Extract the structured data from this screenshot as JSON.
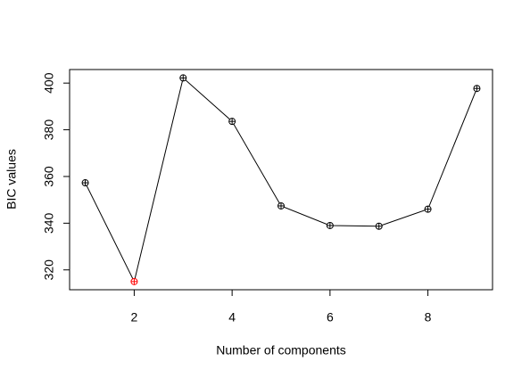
{
  "chart_data": {
    "type": "line",
    "x_label": "Number of components",
    "y_label": "BIC values",
    "x": [
      1,
      2,
      3,
      4,
      5,
      6,
      7,
      8,
      9
    ],
    "series": [
      {
        "color": "#000000",
        "values": [
          357.3,
          315,
          402.2,
          383.6,
          347.4,
          339,
          338.7,
          346,
          397.7
        ],
        "marker_colors": [
          "#000000",
          "#ff0000",
          "#000000",
          "#000000",
          "#000000",
          "#000000",
          "#000000",
          "#000000",
          "#000000"
        ]
      }
    ],
    "xlim": [
      0.68,
      9.32
    ],
    "ylim": [
      311.5,
      405.8
    ],
    "xticks": [
      2,
      4,
      6,
      8
    ],
    "yticks": [
      320,
      340,
      360,
      380,
      400
    ]
  }
}
